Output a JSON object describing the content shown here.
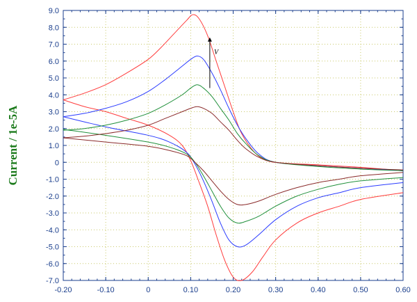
{
  "chart_data": {
    "type": "line",
    "title": "",
    "xlabel": "",
    "ylabel": "Current / 1e-5A",
    "xlim": [
      -0.2,
      0.6
    ],
    "ylim": [
      -7.0,
      9.0
    ],
    "x_ticks": [
      "-0.20",
      "-0.10",
      "0",
      "0.10",
      "0.20",
      "0.30",
      "0.40",
      "0.50",
      "0.60"
    ],
    "y_ticks": [
      "9.0",
      "8.0",
      "7.0",
      "6.0",
      "5.0",
      "4.0",
      "3.0",
      "2.0",
      "1.0",
      "0",
      "-1.0",
      "-2.0",
      "-3.0",
      "-4.0",
      "-5.0",
      "-6.0",
      "-7.0"
    ],
    "grid": true,
    "annotation": {
      "text": "V",
      "x": 0.155,
      "y": 6.4,
      "arrow_from_y": 4.4,
      "arrow_to_y": 7.4
    },
    "series": [
      {
        "color": "#ff3b3b",
        "forward": [
          [
            -0.2,
            3.7
          ],
          [
            -0.15,
            4.1
          ],
          [
            -0.1,
            4.6
          ],
          [
            -0.05,
            5.3
          ],
          [
            0.0,
            6.1
          ],
          [
            0.03,
            6.8
          ],
          [
            0.06,
            7.6
          ],
          [
            0.09,
            8.4
          ],
          [
            0.105,
            8.75
          ],
          [
            0.12,
            8.5
          ],
          [
            0.14,
            7.5
          ],
          [
            0.16,
            6.0
          ],
          [
            0.18,
            4.5
          ],
          [
            0.2,
            3.0
          ],
          [
            0.22,
            1.7
          ],
          [
            0.25,
            0.6
          ],
          [
            0.28,
            0.1
          ],
          [
            0.32,
            -0.05
          ],
          [
            0.4,
            -0.15
          ],
          [
            0.5,
            -0.3
          ],
          [
            0.6,
            -0.5
          ]
        ],
        "reverse": [
          [
            0.6,
            -1.8
          ],
          [
            0.5,
            -2.2
          ],
          [
            0.45,
            -2.6
          ],
          [
            0.4,
            -3.0
          ],
          [
            0.35,
            -3.6
          ],
          [
            0.3,
            -4.6
          ],
          [
            0.27,
            -5.6
          ],
          [
            0.245,
            -6.5
          ],
          [
            0.22,
            -7.0
          ],
          [
            0.2,
            -6.8
          ],
          [
            0.18,
            -5.8
          ],
          [
            0.16,
            -4.3
          ],
          [
            0.14,
            -2.6
          ],
          [
            0.12,
            -1.2
          ],
          [
            0.1,
            0.1
          ],
          [
            0.08,
            1.0
          ],
          [
            0.05,
            1.6
          ],
          [
            0.0,
            2.2
          ],
          [
            -0.05,
            2.6
          ],
          [
            -0.1,
            3.0
          ],
          [
            -0.15,
            3.3
          ],
          [
            -0.2,
            3.7
          ]
        ]
      },
      {
        "color": "#2a3bff",
        "forward": [
          [
            -0.2,
            2.7
          ],
          [
            -0.15,
            2.9
          ],
          [
            -0.1,
            3.2
          ],
          [
            -0.05,
            3.6
          ],
          [
            0.0,
            4.2
          ],
          [
            0.04,
            4.9
          ],
          [
            0.08,
            5.7
          ],
          [
            0.1,
            6.1
          ],
          [
            0.115,
            6.3
          ],
          [
            0.13,
            6.1
          ],
          [
            0.15,
            5.3
          ],
          [
            0.17,
            4.3
          ],
          [
            0.19,
            3.2
          ],
          [
            0.21,
            2.2
          ],
          [
            0.23,
            1.4
          ],
          [
            0.26,
            0.5
          ],
          [
            0.3,
            0.0
          ],
          [
            0.4,
            -0.2
          ],
          [
            0.5,
            -0.35
          ],
          [
            0.6,
            -0.5
          ]
        ],
        "reverse": [
          [
            0.6,
            -1.2
          ],
          [
            0.5,
            -1.5
          ],
          [
            0.45,
            -1.8
          ],
          [
            0.4,
            -2.1
          ],
          [
            0.35,
            -2.6
          ],
          [
            0.3,
            -3.4
          ],
          [
            0.26,
            -4.3
          ],
          [
            0.23,
            -4.9
          ],
          [
            0.21,
            -5.0
          ],
          [
            0.19,
            -4.6
          ],
          [
            0.17,
            -3.6
          ],
          [
            0.15,
            -2.3
          ],
          [
            0.13,
            -1.1
          ],
          [
            0.11,
            -0.1
          ],
          [
            0.09,
            0.6
          ],
          [
            0.05,
            1.2
          ],
          [
            0.0,
            1.6
          ],
          [
            -0.1,
            2.1
          ],
          [
            -0.2,
            2.7
          ]
        ]
      },
      {
        "color": "#1f8f3a",
        "forward": [
          [
            -0.2,
            1.9
          ],
          [
            -0.15,
            2.0
          ],
          [
            -0.1,
            2.2
          ],
          [
            -0.05,
            2.5
          ],
          [
            0.0,
            2.9
          ],
          [
            0.04,
            3.4
          ],
          [
            0.08,
            4.0
          ],
          [
            0.1,
            4.4
          ],
          [
            0.115,
            4.6
          ],
          [
            0.13,
            4.4
          ],
          [
            0.15,
            3.9
          ],
          [
            0.17,
            3.2
          ],
          [
            0.19,
            2.5
          ],
          [
            0.21,
            1.7
          ],
          [
            0.23,
            1.1
          ],
          [
            0.26,
            0.4
          ],
          [
            0.3,
            0.0
          ],
          [
            0.4,
            -0.25
          ],
          [
            0.5,
            -0.4
          ],
          [
            0.6,
            -0.5
          ]
        ],
        "reverse": [
          [
            0.6,
            -0.9
          ],
          [
            0.5,
            -1.1
          ],
          [
            0.45,
            -1.3
          ],
          [
            0.4,
            -1.6
          ],
          [
            0.35,
            -2.0
          ],
          [
            0.3,
            -2.6
          ],
          [
            0.26,
            -3.2
          ],
          [
            0.23,
            -3.5
          ],
          [
            0.21,
            -3.6
          ],
          [
            0.19,
            -3.3
          ],
          [
            0.17,
            -2.6
          ],
          [
            0.15,
            -1.7
          ],
          [
            0.13,
            -0.8
          ],
          [
            0.11,
            0.0
          ],
          [
            0.09,
            0.5
          ],
          [
            0.05,
            0.9
          ],
          [
            0.0,
            1.2
          ],
          [
            -0.1,
            1.6
          ],
          [
            -0.2,
            1.95
          ]
        ]
      },
      {
        "color": "#8a2a2a",
        "forward": [
          [
            -0.2,
            1.45
          ],
          [
            -0.15,
            1.55
          ],
          [
            -0.1,
            1.7
          ],
          [
            -0.05,
            1.9
          ],
          [
            0.0,
            2.2
          ],
          [
            0.04,
            2.6
          ],
          [
            0.08,
            3.0
          ],
          [
            0.1,
            3.2
          ],
          [
            0.115,
            3.3
          ],
          [
            0.13,
            3.2
          ],
          [
            0.15,
            2.9
          ],
          [
            0.17,
            2.4
          ],
          [
            0.19,
            1.9
          ],
          [
            0.21,
            1.3
          ],
          [
            0.23,
            0.8
          ],
          [
            0.26,
            0.3
          ],
          [
            0.3,
            0.0
          ],
          [
            0.4,
            -0.2
          ],
          [
            0.5,
            -0.35
          ],
          [
            0.6,
            -0.45
          ]
        ],
        "reverse": [
          [
            0.6,
            -0.6
          ],
          [
            0.5,
            -0.8
          ],
          [
            0.45,
            -1.0
          ],
          [
            0.4,
            -1.2
          ],
          [
            0.35,
            -1.5
          ],
          [
            0.3,
            -1.9
          ],
          [
            0.26,
            -2.3
          ],
          [
            0.23,
            -2.5
          ],
          [
            0.21,
            -2.5
          ],
          [
            0.19,
            -2.2
          ],
          [
            0.17,
            -1.7
          ],
          [
            0.15,
            -1.1
          ],
          [
            0.13,
            -0.5
          ],
          [
            0.11,
            0.0
          ],
          [
            0.09,
            0.4
          ],
          [
            0.05,
            0.7
          ],
          [
            0.0,
            0.95
          ],
          [
            -0.1,
            1.2
          ],
          [
            -0.2,
            1.45
          ]
        ]
      }
    ]
  }
}
